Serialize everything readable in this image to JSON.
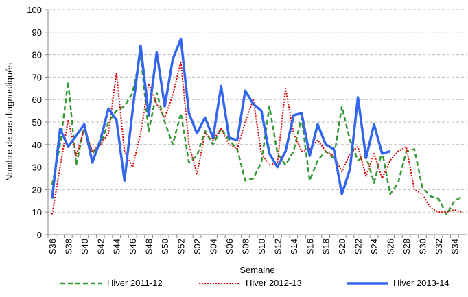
{
  "chart_data": {
    "type": "line",
    "y_label": "Nombre de cas diagnostiqués",
    "x_label": "Semaine",
    "categories": [
      "S36",
      null,
      "S38",
      null,
      "S40",
      null,
      "S42",
      null,
      "S44",
      null,
      "S46",
      null,
      "S48",
      null,
      "S50",
      null,
      "S52",
      null,
      "S02",
      null,
      "S04",
      null,
      "S06",
      null,
      "S08",
      null,
      "S10",
      null,
      "S12",
      null,
      "S14",
      null,
      "S16",
      null,
      "S18",
      null,
      "S20",
      null,
      "S22",
      null,
      "S24",
      null,
      "S26",
      null,
      "S28",
      null,
      "S30",
      null,
      "S32",
      null,
      "S34",
      null
    ],
    "series": [
      {
        "name": "Hiver 2011-12",
        "color": "#339933",
        "style": "dashed",
        "values": [
          22,
          40,
          68,
          31,
          48,
          36,
          40,
          50,
          55,
          57,
          63,
          80,
          46,
          63,
          50,
          40,
          54,
          32,
          35,
          46,
          40,
          47,
          42,
          38,
          24,
          25,
          32,
          57,
          36,
          31,
          37,
          52,
          24,
          33,
          37,
          34,
          57,
          42,
          33,
          35,
          23,
          37,
          18,
          23,
          37,
          38,
          21,
          17,
          16,
          9,
          15,
          17
        ]
      },
      {
        "name": "Hiver 2012-13",
        "color": "#dd0000",
        "style": "dotted",
        "values": [
          9,
          30,
          51,
          35,
          47,
          37,
          40,
          45,
          72,
          37,
          30,
          45,
          67,
          58,
          52,
          62,
          77,
          40,
          27,
          45,
          42,
          47,
          40,
          38,
          50,
          60,
          36,
          31,
          32,
          65,
          45,
          37,
          38,
          42,
          37,
          35,
          28,
          36,
          39,
          26,
          36,
          25,
          33,
          37,
          39,
          20,
          18,
          12,
          10,
          10,
          11,
          10
        ]
      },
      {
        "name": "Hiver 2013-14",
        "color": "#3366ee",
        "style": "solid",
        "values": [
          16,
          47,
          39,
          44,
          49,
          32,
          42,
          56,
          51,
          24,
          55,
          84,
          53,
          81,
          57,
          78,
          87,
          54,
          45,
          52,
          43,
          66,
          43,
          42,
          64,
          58,
          55,
          36,
          30,
          37,
          53,
          54,
          35,
          49,
          40,
          38,
          18,
          29,
          61,
          34,
          49,
          36,
          37,
          null,
          null,
          null,
          null,
          null,
          null,
          null,
          null,
          null
        ]
      }
    ],
    "ylim": [
      0,
      100
    ],
    "yticks": [
      0,
      10,
      20,
      30,
      40,
      50,
      60,
      70,
      80,
      90,
      100
    ],
    "grid": true,
    "legend": "bottom"
  }
}
